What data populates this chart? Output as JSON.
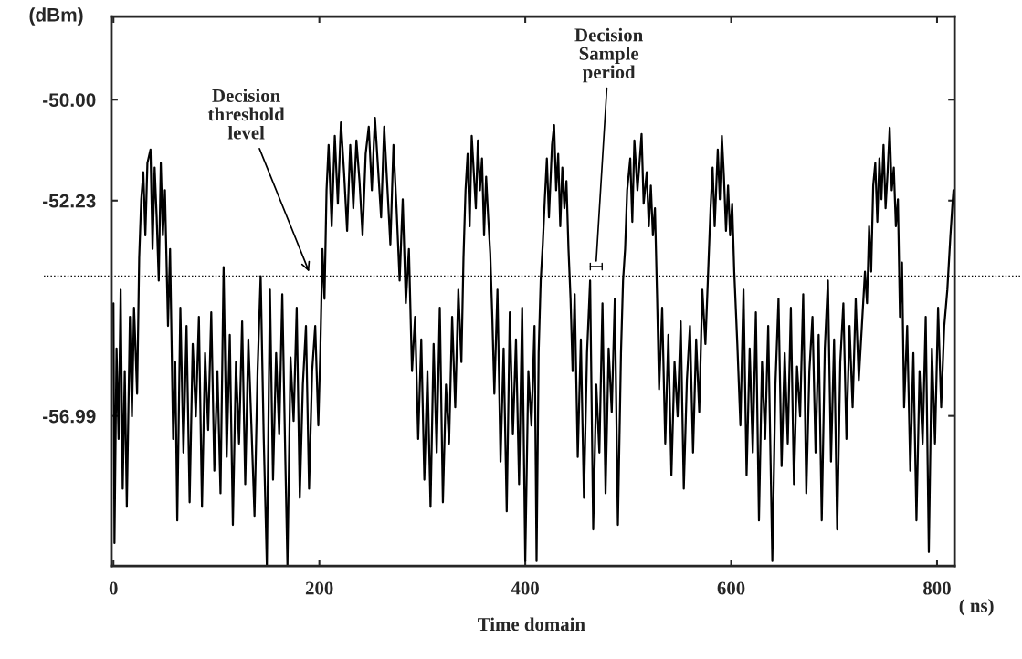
{
  "chart_data": {
    "type": "line",
    "xlabel": "Time domain",
    "ylabel": "(dBm)",
    "xlim": [
      -2,
      817
    ],
    "ylim": [
      -60.31,
      -48.16
    ],
    "xticks": [
      0,
      200,
      400,
      600,
      800
    ],
    "yticks": [
      {
        "value": -50,
        "label": "-50.00"
      },
      -52.23,
      -56.99
    ],
    "grid": false,
    "marker": "none",
    "line_style": "solid",
    "ref_lines": [
      {
        "axis": "y",
        "value": -53.9,
        "color": "#000000",
        "line_style": "dotted"
      }
    ],
    "annotations": [
      {
        "text": "Decision\nthreshold\nlevel",
        "x": 190,
        "y": -53.8
      },
      "Decision\nSample\nperiod",
      "( ns)"
    ],
    "series": [
      {
        "color": "#000000",
        "x": [
          0,
          1,
          3,
          5,
          7,
          9,
          11,
          13,
          16,
          18,
          20,
          23,
          25,
          27,
          29,
          31,
          33,
          36,
          38,
          40,
          42,
          44,
          46,
          48,
          50,
          53,
          55,
          58,
          60,
          62,
          65,
          68,
          71,
          74,
          77,
          80,
          83,
          86,
          89,
          92,
          95,
          98,
          101,
          104,
          107,
          110,
          113,
          116,
          119,
          122,
          125,
          128,
          131,
          134,
          137,
          140,
          143,
          146,
          149,
          152,
          155,
          158,
          161,
          164,
          167,
          169,
          172,
          175,
          178,
          181,
          184,
          187,
          190,
          193,
          196,
          199,
          201,
          203,
          205,
          207,
          209,
          212,
          215,
          218,
          221,
          224,
          227,
          230,
          233,
          236,
          239,
          242,
          245,
          248,
          251,
          254,
          257,
          260,
          263,
          266,
          269,
          272,
          275,
          278,
          281,
          284,
          287,
          290,
          293,
          296,
          299,
          302,
          305,
          308,
          311,
          314,
          317,
          320,
          323,
          326,
          329,
          332,
          335,
          338,
          340,
          342,
          344,
          346,
          348,
          350,
          352,
          354,
          356,
          358,
          360,
          362,
          364,
          366,
          368,
          370,
          373,
          376,
          379,
          382,
          385,
          388,
          391,
          394,
          397,
          400,
          403,
          406,
          409,
          411,
          413,
          415,
          417,
          419,
          421,
          423,
          426,
          428,
          430,
          432,
          434,
          436,
          438,
          440,
          442,
          444,
          446,
          448,
          451,
          454,
          457,
          460,
          463,
          466,
          469,
          472,
          475,
          478,
          481,
          484,
          487,
          490,
          493,
          495,
          497,
          499,
          502,
          504,
          506,
          509,
          511,
          513,
          515,
          518,
          520,
          522,
          524,
          526,
          528,
          530,
          533,
          536,
          539,
          542,
          545,
          548,
          551,
          554,
          557,
          560,
          563,
          566,
          569,
          572,
          575,
          578,
          580,
          582,
          584,
          587,
          589,
          591,
          593,
          595,
          597,
          599,
          601,
          603,
          606,
          609,
          612,
          615,
          618,
          621,
          624,
          627,
          630,
          633,
          636,
          640,
          643,
          646,
          649,
          652,
          655,
          658,
          661,
          664,
          667,
          670,
          673,
          676,
          679,
          682,
          685,
          688,
          691,
          694,
          697,
          700,
          703,
          706,
          709,
          712,
          715,
          718,
          721,
          724,
          727,
          730,
          732,
          734,
          736,
          738,
          740,
          742,
          744,
          746,
          748,
          750,
          752,
          754,
          756,
          758,
          760,
          762,
          764,
          766,
          768,
          771,
          774,
          777,
          780,
          783,
          786,
          789,
          792,
          795,
          798,
          801,
          804,
          807,
          810,
          813,
          815,
          816
        ],
        "values": [
          -54.5,
          -59.8,
          -55.5,
          -57.5,
          -54.2,
          -58.6,
          -56.0,
          -59.0,
          -54.8,
          -57.0,
          -54.6,
          -56.5,
          -53.5,
          -52.2,
          -51.6,
          -53.0,
          -51.4,
          -51.1,
          -53.3,
          -51.5,
          -52.6,
          -54.0,
          -51.4,
          -53.0,
          -52.0,
          -55.0,
          -53.3,
          -57.5,
          -55.8,
          -59.3,
          -54.6,
          -57.8,
          -55.0,
          -58.9,
          -55.4,
          -57.0,
          -54.8,
          -59.0,
          -55.6,
          -57.3,
          -54.7,
          -58.2,
          -56.0,
          -58.7,
          -53.7,
          -57.9,
          -55.2,
          -59.4,
          -55.8,
          -57.6,
          -54.9,
          -58.5,
          -55.3,
          -57.2,
          -59.2,
          -56.0,
          -53.9,
          -57.5,
          -60.3,
          -54.2,
          -58.4,
          -55.6,
          -57.4,
          -54.3,
          -58.0,
          -60.3,
          -55.7,
          -57.1,
          -54.6,
          -58.8,
          -56.3,
          -55.0,
          -58.6,
          -56.0,
          -55.0,
          -57.2,
          -55.5,
          -53.3,
          -54.4,
          -52.0,
          -51.0,
          -52.8,
          -50.8,
          -52.3,
          -50.5,
          -51.6,
          -52.9,
          -51.0,
          -52.4,
          -50.9,
          -51.8,
          -53.0,
          -51.2,
          -50.6,
          -52.0,
          -50.4,
          -51.5,
          -52.6,
          -50.6,
          -51.9,
          -53.2,
          -51.0,
          -52.4,
          -54.0,
          -52.2,
          -54.5,
          -53.3,
          -56.0,
          -54.8,
          -57.5,
          -55.3,
          -58.4,
          -56.0,
          -59.0,
          -55.4,
          -57.8,
          -54.6,
          -58.9,
          -56.3,
          -57.6,
          -54.8,
          -56.8,
          -54.2,
          -55.8,
          -53.5,
          -52.0,
          -51.2,
          -52.8,
          -50.8,
          -51.6,
          -52.4,
          -50.9,
          -52.0,
          -51.3,
          -53.0,
          -51.7,
          -52.6,
          -53.4,
          -54.8,
          -56.5,
          -54.2,
          -58.0,
          -55.5,
          -59.1,
          -54.7,
          -57.4,
          -55.3,
          -58.5,
          -54.6,
          -60.2,
          -56.0,
          -57.2,
          -55.0,
          -60.2,
          -55.6,
          -54.0,
          -53.2,
          -52.2,
          -51.3,
          -52.6,
          -51.0,
          -50.56,
          -52.0,
          -51.2,
          -52.8,
          -51.5,
          -52.4,
          -51.8,
          -53.3,
          -54.4,
          -56.0,
          -54.3,
          -57.9,
          -55.3,
          -58.8,
          -55.6,
          -54.0,
          -59.5,
          -56.3,
          -57.8,
          -54.5,
          -58.7,
          -55.5,
          -56.9,
          -54.4,
          -59.4,
          -55.6,
          -54.0,
          -53.3,
          -52.0,
          -51.3,
          -52.7,
          -50.9,
          -52.0,
          -51.4,
          -50.76,
          -52.3,
          -51.6,
          -52.8,
          -51.9,
          -53.0,
          -52.4,
          -54.3,
          -56.4,
          -54.6,
          -57.6,
          -55.2,
          -58.3,
          -55.8,
          -57.0,
          -54.9,
          -58.6,
          -56.2,
          -55.0,
          -57.8,
          -55.3,
          -56.9,
          -54.2,
          -55.4,
          -53.6,
          -52.4,
          -51.5,
          -52.8,
          -51.1,
          -52.2,
          -50.8,
          -51.7,
          -52.9,
          -51.9,
          -53.0,
          -52.3,
          -53.8,
          -55.4,
          -57.2,
          -54.2,
          -58.3,
          -55.5,
          -57.8,
          -54.7,
          -59.3,
          -55.8,
          -57.5,
          -55.0,
          -60.2,
          -56.3,
          -54.4,
          -58.1,
          -55.6,
          -57.6,
          -54.6,
          -58.5,
          -55.9,
          -57.0,
          -54.3,
          -58.7,
          -56.0,
          -54.8,
          -57.8,
          -55.2,
          -59.3,
          -55.5,
          -54.0,
          -58.0,
          -55.3,
          -59.5,
          -55.8,
          -54.5,
          -57.5,
          -55.0,
          -56.8,
          -54.4,
          -56.2,
          -55.0,
          -53.8,
          -54.5,
          -52.8,
          -53.8,
          -51.9,
          -51.4,
          -52.7,
          -51.3,
          -52.2,
          -51.0,
          -52.4,
          -51.6,
          -50.62,
          -52.0,
          -51.5,
          -52.8,
          -52.2,
          -54.8,
          -53.6,
          -56.8,
          -55.0,
          -58.2,
          -55.6,
          -59.3,
          -56.0,
          -57.6,
          -54.8,
          -60.0,
          -55.5,
          -57.6,
          -54.6,
          -56.8,
          -55.0,
          -54.2,
          -53.0,
          -52.3,
          -52.0
        ]
      }
    ]
  }
}
